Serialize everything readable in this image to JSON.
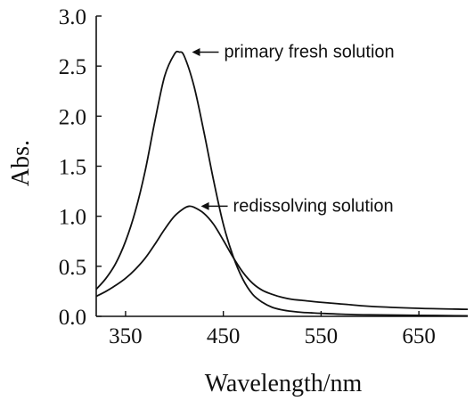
{
  "chart_data": {
    "type": "line",
    "title": "",
    "xlabel": "Wavelength/nm",
    "ylabel": "Abs.",
    "xlim": [
      320,
      700
    ],
    "ylim": [
      0.0,
      3.0
    ],
    "x_ticks": [
      350,
      450,
      550,
      650
    ],
    "x_tick_labels": [
      "350",
      "450",
      "550",
      "650"
    ],
    "y_ticks": [
      0.0,
      0.5,
      1.0,
      1.5,
      2.0,
      2.5,
      3.0
    ],
    "y_tick_labels": [
      "0.0",
      "0.5",
      "1.0",
      "1.5",
      "2.0",
      "2.5",
      "3.0"
    ],
    "grid": false,
    "line_color": "#111111",
    "series": [
      {
        "name": "primary fresh solution",
        "x": [
          320,
          330,
          340,
          350,
          360,
          370,
          380,
          390,
          400,
          405,
          410,
          420,
          430,
          440,
          450,
          460,
          470,
          480,
          490,
          500,
          510,
          520,
          530,
          540,
          550,
          575,
          600,
          650,
          700
        ],
        "y": [
          0.27,
          0.38,
          0.53,
          0.75,
          1.05,
          1.45,
          1.95,
          2.4,
          2.62,
          2.64,
          2.6,
          2.3,
          1.85,
          1.36,
          0.92,
          0.6,
          0.37,
          0.22,
          0.14,
          0.09,
          0.065,
          0.05,
          0.04,
          0.035,
          0.03,
          0.02,
          0.015,
          0.01,
          0.005
        ]
      },
      {
        "name": "redissolving solution",
        "x": [
          320,
          330,
          340,
          350,
          360,
          370,
          380,
          390,
          400,
          410,
          415,
          420,
          430,
          440,
          450,
          460,
          470,
          480,
          490,
          500,
          510,
          520,
          530,
          550,
          575,
          600,
          650,
          700
        ],
        "y": [
          0.2,
          0.25,
          0.31,
          0.38,
          0.47,
          0.58,
          0.72,
          0.87,
          1.0,
          1.08,
          1.1,
          1.09,
          1.03,
          0.92,
          0.76,
          0.59,
          0.44,
          0.33,
          0.26,
          0.22,
          0.19,
          0.17,
          0.16,
          0.14,
          0.12,
          0.1,
          0.08,
          0.07
        ]
      }
    ],
    "annotations": [
      {
        "text": "primary fresh solution",
        "x": 407,
        "y": 2.64
      },
      {
        "text": "redissolving solution",
        "x": 418,
        "y": 1.1
      }
    ]
  }
}
